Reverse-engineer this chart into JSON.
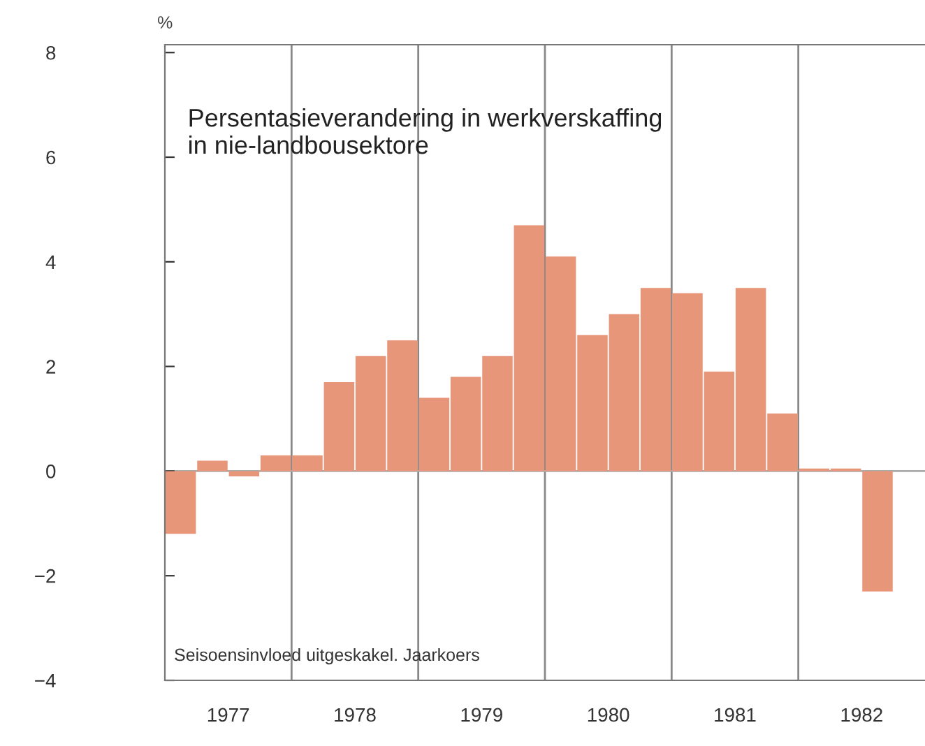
{
  "chart_data": {
    "type": "bar",
    "title": "Persentasieverandering in werkverskaffing\nin nie-landbousektore",
    "ylabel": "%",
    "x": [
      1977.125,
      1977.375,
      1977.625,
      1977.875,
      1978.125,
      1978.375,
      1978.625,
      1978.875,
      1979.125,
      1979.375,
      1979.625,
      1979.875,
      1980.125,
      1980.375,
      1980.625,
      1980.875,
      1981.125,
      1981.375,
      1981.625,
      1981.875,
      1982.125,
      1982.375,
      1982.625
    ],
    "values": [
      -1.2,
      0.2,
      -0.1,
      0.3,
      0.3,
      1.7,
      2.2,
      2.5,
      1.4,
      1.8,
      2.2,
      4.7,
      4.1,
      2.6,
      3.0,
      3.5,
      3.4,
      1.9,
      3.5,
      1.1,
      0.05,
      0.05,
      -2.3
    ],
    "color": "#e8967a",
    "xlim": [
      1977,
      1983
    ],
    "xticks": [
      {
        "value": 1977.5,
        "label": "1977"
      },
      {
        "value": 1978.5,
        "label": "1978"
      },
      {
        "value": 1979.5,
        "label": "1979"
      },
      {
        "value": 1980.5,
        "label": "1980"
      },
      {
        "value": 1981.5,
        "label": "1981"
      },
      {
        "value": 1982.5,
        "label": "1982"
      }
    ],
    "ylim": [
      -4,
      8.15
    ],
    "yticks": [
      {
        "value": -4,
        "label": "−4"
      },
      {
        "value": -2,
        "label": "−2"
      },
      0,
      2,
      4,
      6,
      8
    ],
    "ref_lines": [
      {
        "axis": "x",
        "value": 1978,
        "label": null,
        "color": "#888888"
      },
      {
        "axis": "x",
        "value": 1979,
        "label": null,
        "color": "#888888"
      },
      {
        "axis": "x",
        "value": 1980,
        "label": null,
        "color": "#888888"
      },
      {
        "axis": "x",
        "value": 1981,
        "label": null,
        "color": "#888888"
      },
      {
        "axis": "x",
        "value": 1982,
        "label": null,
        "color": "#888888"
      },
      {
        "axis": "y",
        "value": 0,
        "label": null,
        "color": "#aaaaaa"
      }
    ],
    "annotations": [
      "Seisoensinvloed uitgeskakel. Jaarkoers"
    ],
    "grid": false,
    "legend": false
  }
}
